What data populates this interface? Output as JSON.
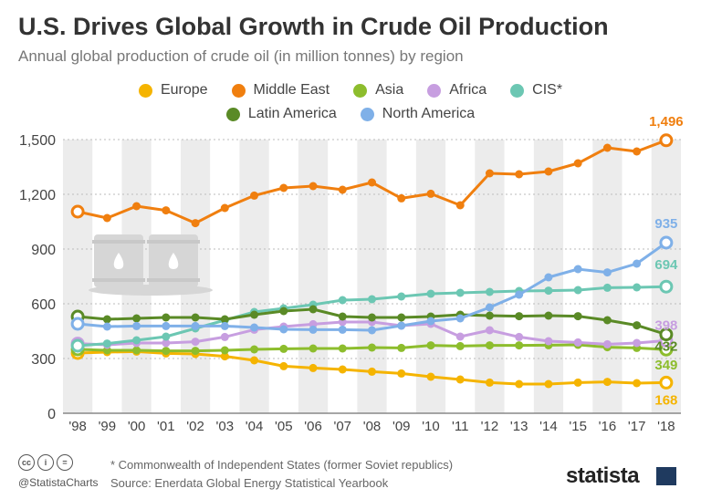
{
  "header": {
    "title": "U.S. Drives Global Growth in Crude Oil Production",
    "subtitle": "Annual global production of crude oil (in million tonnes) by region"
  },
  "footer": {
    "note": "* Commonwealth of Independent States (former Soviet republics)",
    "source": "Source: Enerdata Global Energy Statistical Yearbook",
    "handle": "@StatistaCharts",
    "brand": "statista"
  },
  "colors": {
    "Europe": "#f5b400",
    "Middle East": "#f07f0f",
    "Asia": "#8dbd2d",
    "Africa": "#c79ee0",
    "CIS": "#6cc7b3",
    "Latin America": "#5a8a26",
    "North America": "#7fb0e8",
    "band": "#ececec",
    "barrel": "#d6d6d6"
  },
  "chart_data": {
    "type": "line",
    "x": [
      "'98",
      "'99",
      "'00",
      "'01",
      "'02",
      "'03",
      "'04",
      "'05",
      "'06",
      "'07",
      "'08",
      "'09",
      "'10",
      "'11",
      "'12",
      "'13",
      "'14",
      "'15",
      "'16",
      "'17",
      "'18"
    ],
    "ylim": [
      0,
      1500
    ],
    "yticks": [
      "0",
      "300",
      "600",
      "900",
      "1,200",
      "1,500"
    ],
    "grid": "alternating-vertical-bands",
    "legend": "top",
    "legend_rows": [
      [
        "Europe",
        "Middle East",
        "Asia",
        "Africa",
        "CIS*"
      ],
      [
        "Latin America",
        "North America"
      ]
    ],
    "series": [
      {
        "name": "Europe",
        "color_key": "Europe",
        "end_label": "168",
        "values": [
          330,
          335,
          338,
          328,
          325,
          312,
          290,
          258,
          248,
          240,
          228,
          218,
          200,
          185,
          168,
          160,
          160,
          168,
          172,
          165,
          168
        ]
      },
      {
        "name": "Middle East",
        "color_key": "Middle East",
        "end_label": "1,496",
        "values": [
          1105,
          1070,
          1135,
          1112,
          1042,
          1125,
          1193,
          1235,
          1245,
          1225,
          1265,
          1178,
          1203,
          1140,
          1315,
          1310,
          1325,
          1370,
          1455,
          1435,
          1496
        ]
      },
      {
        "name": "Asia",
        "color_key": "Asia",
        "end_label": "349",
        "values": [
          350,
          345,
          345,
          342,
          342,
          345,
          350,
          353,
          355,
          355,
          360,
          358,
          372,
          368,
          372,
          372,
          373,
          375,
          362,
          358,
          349
        ]
      },
      {
        "name": "Africa",
        "color_key": "Africa",
        "end_label": "398",
        "values": [
          382,
          375,
          385,
          385,
          392,
          418,
          458,
          475,
          488,
          500,
          500,
          480,
          490,
          420,
          455,
          418,
          395,
          388,
          378,
          385,
          398
        ]
      },
      {
        "name": "CIS*",
        "color_key": "CIS",
        "end_label": "694",
        "values": [
          370,
          382,
          400,
          420,
          465,
          510,
          555,
          575,
          595,
          620,
          625,
          640,
          655,
          660,
          665,
          670,
          672,
          675,
          688,
          690,
          694
        ]
      },
      {
        "name": "Latin America",
        "color_key": "Latin America",
        "end_label": "432",
        "values": [
          530,
          515,
          520,
          525,
          525,
          515,
          540,
          560,
          570,
          530,
          525,
          525,
          530,
          540,
          535,
          532,
          535,
          532,
          510,
          482,
          432
        ]
      },
      {
        "name": "North America",
        "color_key": "North America",
        "end_label": "935",
        "values": [
          490,
          475,
          478,
          478,
          478,
          478,
          470,
          460,
          458,
          458,
          455,
          480,
          505,
          520,
          580,
          650,
          745,
          790,
          772,
          820,
          935
        ]
      }
    ]
  }
}
